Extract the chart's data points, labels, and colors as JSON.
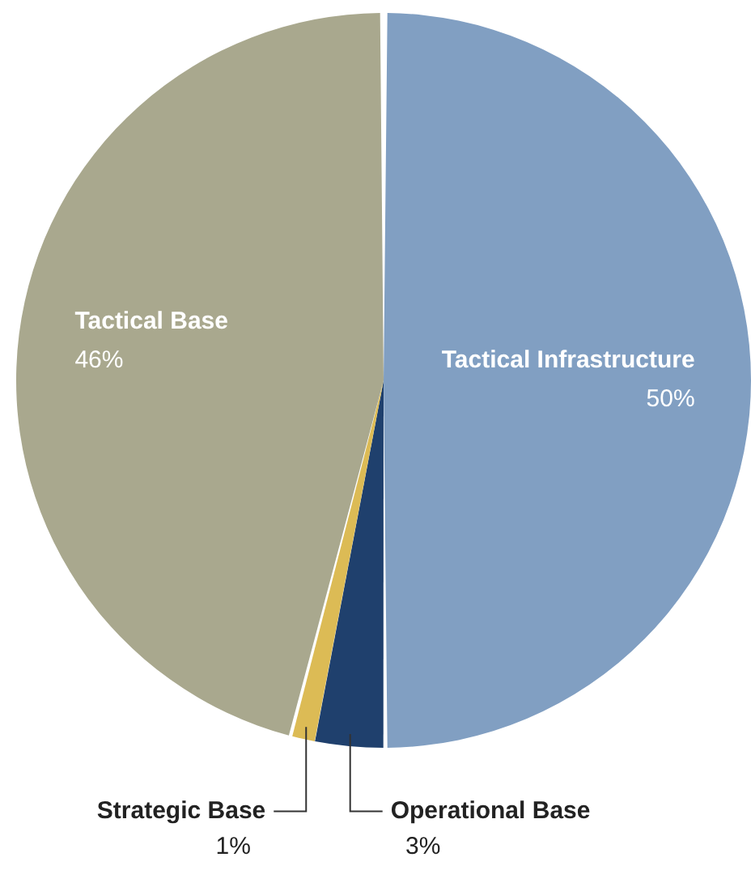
{
  "chart_data": {
    "type": "pie",
    "categories": [
      "Tactical Infrastructure",
      "Operational Base",
      "Strategic Base",
      "Tactical Base"
    ],
    "values": [
      50,
      3,
      1,
      46
    ],
    "value_labels": [
      "50%",
      "3%",
      "1%",
      "46%"
    ],
    "colors": [
      "#819fc2",
      "#1f406d",
      "#dcbb55",
      "#a9a88e"
    ],
    "legend": false
  }
}
